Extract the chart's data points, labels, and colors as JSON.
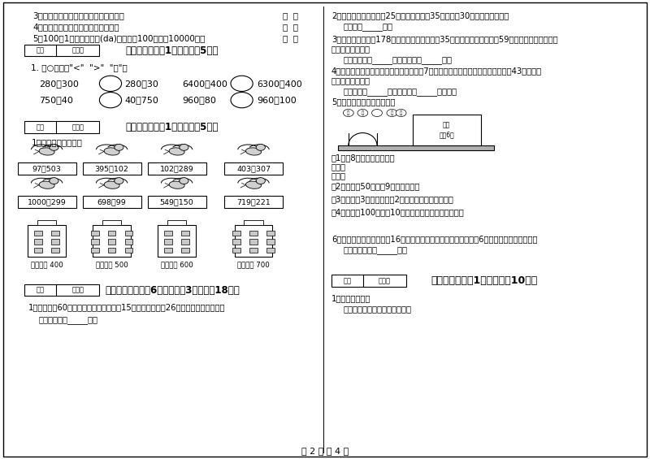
{
  "bg_color": "#ffffff",
  "text_color": "#000000",
  "page_width": 8.0,
  "page_height": 5.65,
  "section6_title": "六、比一比（共1大题，共臵5分）",
  "section6_sub": "1. 在○里填上\"<\"  \">\"  \"=\"。",
  "section7_title": "七、连一连（共1大题，共臵5分）",
  "section7_sub": "1．估一估，连一连。",
  "section8_title": "八、解决问题（共6小题，每邘3分，共膁18分）",
  "section8_q1": "1．体育室有60副羽毛球拍，小明借走了15副，小亮借走了26副，现在还剩多少副？",
  "section8_a1": "答：现在还剩_____副。",
  "row1_exprs": [
    "97＋503",
    "395＋102",
    "102＋289",
    "403＋307"
  ],
  "row2_exprs": [
    "1000－299",
    "698－99",
    "549－150",
    "719－221"
  ],
  "building_labels": [
    "得数接近 400",
    "得数大约 500",
    "得数接近 600",
    "得数大约 700"
  ],
  "top_texts": [
    "3．长方形和正方形的四个角都是直角。",
    "4．对边相等的四边形一定是长方形。",
    "5．100土1元纸币叠一叠(da)，这样的100叠就是10000元。"
  ],
  "q2": "2．粶店第一次运进面粖25袋，第二次运进35袋，卖出30袋，还剩多少袋？",
  "q2_ans": "答：还剩_____袋。",
  "q3_line1": "3．饰养场有小白兔178只，小灰兔比小白兔多35只，小黑兔比小白兔多59只，小灰兔有多少只？",
  "q3_line2": "小黑兔有多少只？",
  "q3_ans": "答：小灰兔有_____只，小黑兔有_____只。",
  "q4_line1": "4．操场上有一群学生又来了男生、女生坴7人，新来了多少学生？现在操场上共有43个学生原",
  "q4_line2": "来有多少个学生？",
  "q4_ans": "答：新来了_____学生，原来有_____个学生。",
  "q5": "5．星期日同学们去游乐园。",
  "q5_sub1": "（1）予8张门票用多少元？",
  "q5_sub2": "（2）小莉拿50元，亘9张门票够吗？",
  "q5_sub3": "（3）小红了3张门票，还夐2元錢，小红带了多少錢？",
  "q5_sub4": "（4）小红拿100元，争10张门票，还可以剩下多少錢？",
  "q6": "6．小明的妈妈买回来一根16米长的绳子，截去一些做跳绳，还外6米，做跳绳用去多少米？",
  "q6_ans": "答：做跳绳用去_____米。",
  "section10_title": "十、综合题（共1大题，共膁10分）",
  "section10_sub": "1．请你画一画。",
  "section10_desc": "在下面画一个锐角和一个閑角。",
  "footer": "第 2 页 共 4 页",
  "comp_lefts": [
    "280＋300",
    "750＋40",
    "6400－400",
    "960－80"
  ],
  "comp_rights": [
    "280＋30",
    "40＋750",
    "6300－400",
    "960－100"
  ]
}
